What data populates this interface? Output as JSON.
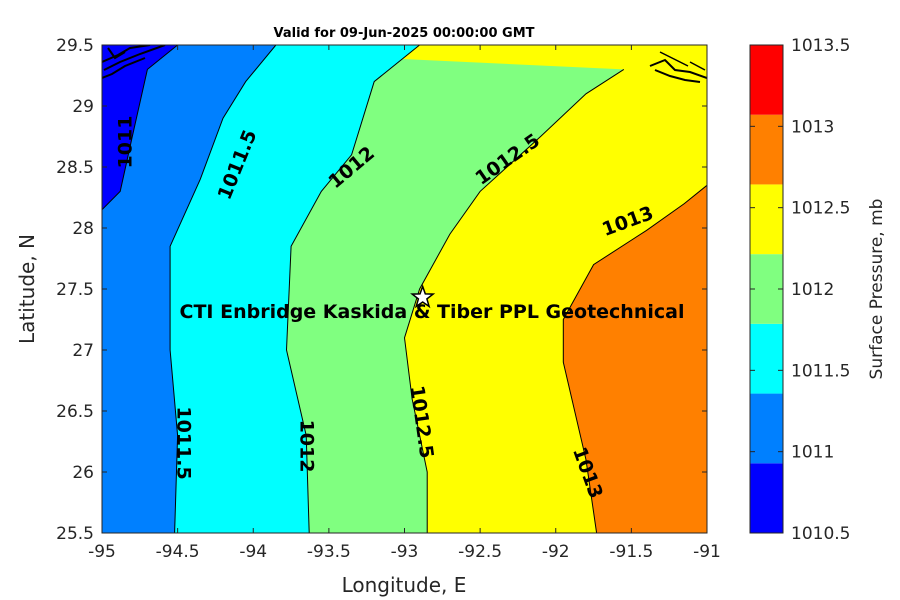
{
  "chart_data": {
    "type": "contour",
    "title": "Valid for 09-Jun-2025 00:00:00 GMT",
    "xlabel": "Longitude, E",
    "ylabel": "Latitude, N",
    "xlim": [
      -95,
      -91
    ],
    "ylim": [
      25.5,
      29.5
    ],
    "xticks": [
      "-95",
      "-94.5",
      "-94",
      "-93.5",
      "-93",
      "-92.5",
      "-92",
      "-91.5",
      "-91"
    ],
    "yticks": [
      "25.5",
      "26",
      "26.5",
      "27",
      "27.5",
      "28",
      "28.5",
      "29",
      "29.5"
    ],
    "contour_levels": [
      1011,
      1011.5,
      1012,
      1012.5,
      1013
    ],
    "contour_lines": [
      {
        "level": 1011,
        "points": [
          [
            -95,
            28.15
          ],
          [
            -94.88,
            28.3
          ],
          [
            -94.8,
            28.75
          ],
          [
            -94.7,
            29.3
          ],
          [
            -94.5,
            29.5
          ]
        ]
      },
      {
        "level": 1011.5,
        "points": [
          [
            -94.52,
            25.5
          ],
          [
            -94.5,
            26.3
          ],
          [
            -94.55,
            27.0
          ],
          [
            -94.55,
            27.85
          ],
          [
            -94.35,
            28.4
          ],
          [
            -94.2,
            28.9
          ],
          [
            -94.05,
            29.2
          ],
          [
            -93.85,
            29.5
          ]
        ]
      },
      {
        "level": 1012,
        "points": [
          [
            -93.63,
            25.5
          ],
          [
            -93.65,
            26.3
          ],
          [
            -93.78,
            27.0
          ],
          [
            -93.75,
            27.85
          ],
          [
            -93.55,
            28.3
          ],
          [
            -93.35,
            28.6
          ],
          [
            -93.2,
            29.2
          ],
          [
            -92.9,
            29.5
          ]
        ]
      },
      {
        "level": 1012.5,
        "points": [
          [
            -92.85,
            25.5
          ],
          [
            -92.85,
            26.0
          ],
          [
            -92.95,
            26.6
          ],
          [
            -93.0,
            27.1
          ],
          [
            -92.9,
            27.5
          ],
          [
            -92.7,
            27.95
          ],
          [
            -92.5,
            28.3
          ],
          [
            -92.1,
            28.75
          ],
          [
            -91.8,
            29.1
          ],
          [
            -91.55,
            29.3
          ]
        ]
      },
      {
        "level": 1013,
        "points": [
          [
            -91.73,
            25.5
          ],
          [
            -91.8,
            26.1
          ],
          [
            -91.95,
            26.9
          ],
          [
            -91.95,
            27.25
          ],
          [
            -91.75,
            27.7
          ],
          [
            -91.4,
            27.98
          ],
          [
            -91.15,
            28.2
          ],
          [
            -91,
            28.35
          ]
        ]
      }
    ],
    "contour_labels": [
      "1011",
      "1011.5",
      "1012",
      "1012.5",
      "1013",
      "1011.5",
      "1012",
      "1012.5",
      "1013"
    ],
    "colorbar": {
      "title": "Surface Pressure, mb",
      "levels": [
        "1010.5",
        "1011",
        "1011.5",
        "1012",
        "1012.5",
        "1013",
        "1013.5"
      ],
      "colors": [
        "#0000ff",
        "#0080ff",
        "#00ffff",
        "#80ff80",
        "#ffff00",
        "#ff8000",
        "#ff0000"
      ]
    },
    "marker": {
      "lon": -92.88,
      "lat": 27.43,
      "label": "CTI Enbridge  Kaskida & Tiber PPL Geotechnical"
    }
  }
}
